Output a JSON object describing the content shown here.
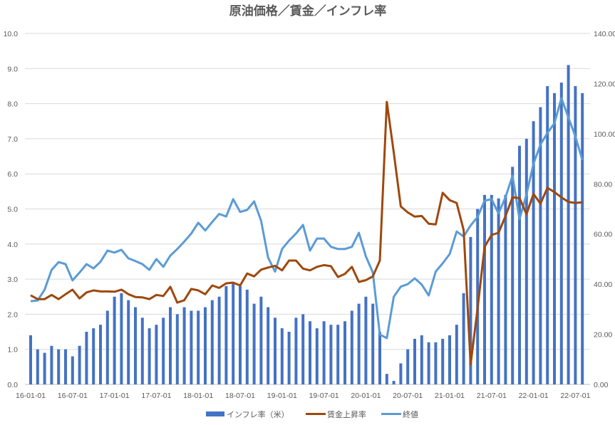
{
  "chart_data": {
    "type": "bar+line",
    "title": "原油価格／賃金／インフレ率",
    "x_tick_labels": [
      "16-01-01",
      "16-07-01",
      "17-01-01",
      "17-07-01",
      "18-01-01",
      "18-07-01",
      "19-01-01",
      "19-07-01",
      "20-01-01",
      "20-07-01",
      "21-01-01",
      "21-07-01",
      "22-01-01",
      "22-07-01"
    ],
    "x_start": "2016-01",
    "x_frequency": "monthly",
    "left_axis": {
      "min": 0,
      "max": 10,
      "step": 1,
      "tick_labels": [
        "0.0",
        "1.0",
        "2.0",
        "3.0",
        "4.0",
        "5.0",
        "6.0",
        "7.0",
        "8.0",
        "9.0",
        "10.0"
      ]
    },
    "right_axis": {
      "min": 0,
      "max": 140,
      "step": 20,
      "tick_labels": [
        "0.00",
        "20.00",
        "40.00",
        "60.00",
        "80.00",
        "100.00",
        "120.00",
        "140.00"
      ]
    },
    "grid": true,
    "legend_position": "bottom",
    "series": [
      {
        "name": "インフレ率（米）",
        "type": "bar",
        "axis": "left",
        "color": "#4472C4",
        "values": [
          1.4,
          1.0,
          0.9,
          1.1,
          1.0,
          1.0,
          0.8,
          1.1,
          1.5,
          1.6,
          1.7,
          2.1,
          2.5,
          2.6,
          2.4,
          2.2,
          1.9,
          1.6,
          1.7,
          1.9,
          2.2,
          2.0,
          2.2,
          2.1,
          2.1,
          2.2,
          2.4,
          2.5,
          2.8,
          2.9,
          2.8,
          2.7,
          2.3,
          2.5,
          2.2,
          1.9,
          1.6,
          1.5,
          1.9,
          2.0,
          1.8,
          1.6,
          1.8,
          1.7,
          1.7,
          1.8,
          2.1,
          2.3,
          2.5,
          2.3,
          1.5,
          0.3,
          0.1,
          0.6,
          1.0,
          1.3,
          1.4,
          1.2,
          1.2,
          1.3,
          1.4,
          1.7,
          2.6,
          4.2,
          5.0,
          5.4,
          5.4,
          5.3,
          5.4,
          6.2,
          6.8,
          7.0,
          7.5,
          7.9,
          8.5,
          8.3,
          8.6,
          9.1,
          8.5,
          8.3
        ]
      },
      {
        "name": "賃金上昇率",
        "type": "line",
        "axis": "left",
        "color": "#9E480E",
        "values": [
          2.54,
          2.43,
          2.43,
          2.55,
          2.43,
          2.57,
          2.7,
          2.45,
          2.62,
          2.68,
          2.65,
          2.65,
          2.64,
          2.7,
          2.57,
          2.49,
          2.48,
          2.43,
          2.55,
          2.52,
          2.78,
          2.33,
          2.4,
          2.72,
          2.68,
          2.57,
          2.82,
          2.75,
          2.88,
          2.9,
          2.82,
          3.16,
          3.08,
          3.27,
          3.33,
          3.38,
          3.25,
          3.53,
          3.53,
          3.3,
          3.25,
          3.35,
          3.4,
          3.37,
          3.06,
          3.15,
          3.35,
          2.92,
          2.97,
          3.08,
          3.53,
          8.05,
          6.6,
          5.07,
          4.9,
          4.78,
          4.8,
          4.58,
          4.56,
          5.46,
          5.25,
          5.17,
          4.4,
          0.57,
          2.17,
          3.92,
          4.26,
          4.32,
          4.8,
          5.33,
          5.31,
          4.85,
          5.43,
          5.15,
          5.6,
          5.48,
          5.33,
          5.2,
          5.17,
          5.19
        ]
      },
      {
        "name": "終値",
        "type": "line",
        "axis": "right",
        "color": "#5B9BD5",
        "values": [
          33.2,
          33.5,
          37.8,
          45.7,
          48.8,
          48,
          41.5,
          44.6,
          48,
          46.3,
          48.9,
          53.4,
          52.6,
          53.7,
          50.3,
          49.2,
          48,
          45.7,
          50,
          46.9,
          51.4,
          54,
          57,
          60.2,
          64.5,
          61.4,
          64.8,
          68,
          67,
          73.9,
          68.8,
          69.6,
          73,
          65.3,
          50.6,
          45,
          54,
          57.4,
          60.2,
          63.6,
          53.4,
          58.2,
          58.2,
          54.9,
          54,
          54,
          54.9,
          60.5,
          51.1,
          44.6,
          19.9,
          18.5,
          35,
          39,
          40,
          42.3,
          39.8,
          35.5,
          45,
          48.3,
          52,
          61,
          59,
          63.4,
          66.8,
          73.3,
          73.9,
          68.2,
          74.7,
          83.2,
          65.9,
          75.8,
          88,
          95.7,
          100.3,
          104.2,
          114.2,
          106.5,
          98.9,
          89.5
        ]
      }
    ]
  }
}
